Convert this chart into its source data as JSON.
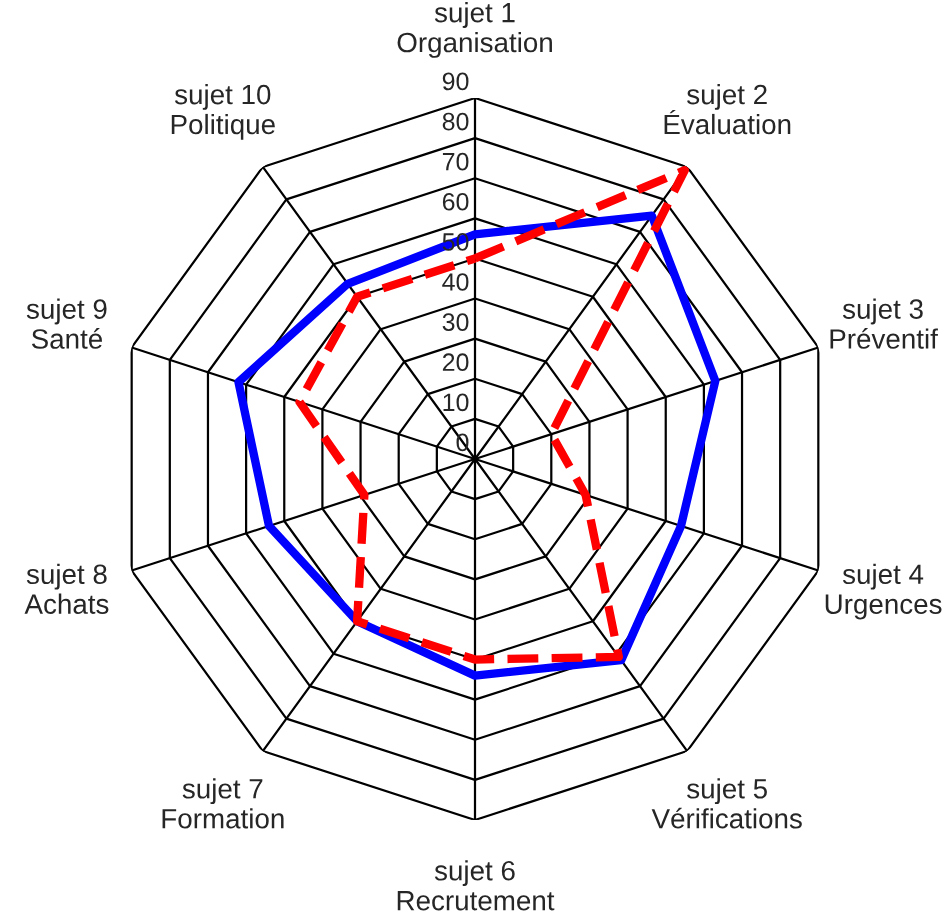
{
  "chart_data": {
    "type": "radar",
    "categories": [
      "sujet 1\nOrganisation",
      "sujet 2\nÉvaluation",
      "sujet 3\nPréventif",
      "sujet 4\nUrgences",
      "sujet 5\nVérifications",
      "sujet 6\nRecrutement",
      "sujet 7\nFormation",
      "sujet 8\nAchats",
      "sujet 9\nSanté",
      "sujet 10\nPolitique"
    ],
    "series": [
      {
        "color": "#0000ff",
        "line_style": "solid",
        "values": [
          56,
          75,
          63,
          54,
          62,
          54,
          50,
          54,
          62,
          54
        ]
      },
      {
        "color": "#ff0000",
        "line_style": "dashed",
        "values": [
          50,
          89,
          20,
          29,
          61,
          50,
          50,
          29,
          46,
          50
        ]
      }
    ],
    "ylim": [
      0,
      90
    ],
    "yticks": [
      0,
      10,
      20,
      30,
      40,
      50,
      60,
      70,
      80,
      90
    ],
    "grid": true,
    "marker": "none"
  }
}
